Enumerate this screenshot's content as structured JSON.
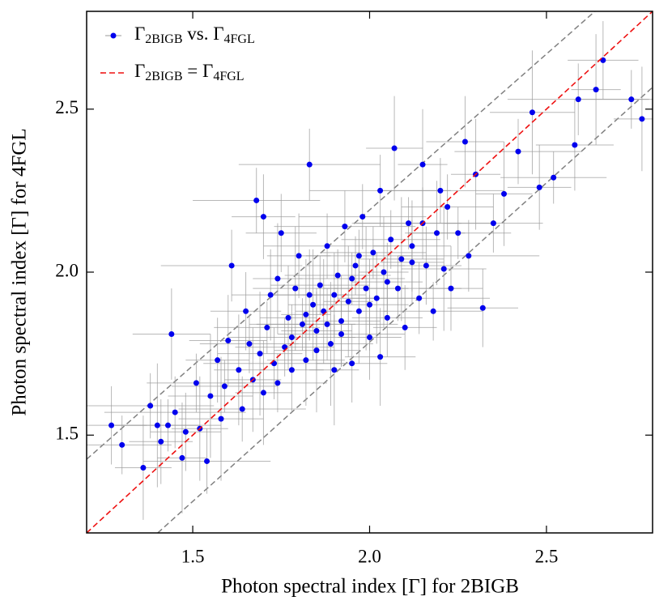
{
  "chart_data": {
    "type": "scatter",
    "xlabel": "Photon spectral index [Γ] for 2BIGB",
    "ylabel": "Photon spectral index [Γ] for 4FGL",
    "xlim": [
      1.2,
      2.8
    ],
    "ylim": [
      1.2,
      2.8
    ],
    "xticks": [
      1.5,
      {
        "value": 2,
        "label": "2.0"
      },
      2.5
    ],
    "yticks": [
      1.5,
      {
        "value": 2,
        "label": "2.0"
      },
      2.5
    ],
    "legend": "upper left",
    "series": [
      {
        "name": "Γ2BIGB vs. Γ4FGL",
        "color": "#0000ee",
        "error_color": "#9a9a9a",
        "x": [
          1.27,
          1.3,
          1.36,
          1.38,
          1.4,
          1.41,
          1.43,
          1.44,
          1.45,
          1.47,
          1.48,
          1.51,
          1.52,
          1.54,
          1.55,
          1.57,
          1.59,
          1.6,
          1.61,
          1.63,
          1.65,
          1.66,
          1.67,
          1.68,
          1.69,
          1.7,
          1.71,
          1.72,
          1.73,
          1.74,
          1.75,
          1.76,
          1.77,
          1.78,
          1.79,
          1.8,
          1.81,
          1.82,
          1.83,
          1.84,
          1.85,
          1.86,
          1.87,
          1.88,
          1.89,
          1.9,
          1.91,
          1.92,
          1.93,
          1.94,
          1.95,
          1.96,
          1.97,
          1.98,
          1.99,
          2.0,
          2.01,
          2.02,
          2.03,
          2.04,
          2.05,
          2.06,
          2.07,
          2.08,
          2.09,
          2.1,
          2.11,
          2.12,
          2.14,
          2.15,
          2.16,
          2.18,
          2.19,
          2.2,
          2.21,
          2.23,
          2.25,
          2.27,
          2.28,
          2.3,
          2.32,
          2.35,
          2.38,
          2.42,
          2.46,
          2.48,
          2.52,
          2.58,
          2.59,
          2.64,
          2.66,
          2.74,
          2.77,
          1.92,
          1.85,
          1.78,
          1.95,
          2.0,
          1.88,
          1.82,
          2.05,
          1.74,
          1.7,
          1.64,
          1.58,
          2.12,
          1.97,
          1.83,
          2.15,
          1.9,
          2.22,
          2.03
        ],
        "y": [
          1.53,
          1.47,
          1.4,
          1.59,
          1.53,
          1.48,
          1.53,
          1.81,
          1.57,
          1.43,
          1.51,
          1.66,
          1.52,
          1.42,
          1.62,
          1.73,
          1.65,
          1.79,
          2.02,
          1.7,
          1.88,
          1.78,
          1.67,
          2.22,
          1.75,
          2.17,
          1.83,
          1.93,
          1.72,
          1.98,
          2.12,
          1.77,
          1.86,
          1.8,
          1.95,
          2.05,
          1.84,
          1.73,
          2.33,
          1.9,
          1.82,
          1.96,
          1.88,
          2.08,
          1.78,
          1.93,
          1.99,
          1.85,
          2.14,
          1.91,
          1.72,
          2.02,
          1.88,
          2.17,
          1.95,
          1.8,
          2.06,
          1.92,
          2.25,
          2.0,
          1.86,
          2.1,
          2.38,
          1.95,
          2.04,
          1.83,
          2.15,
          2.08,
          1.92,
          2.33,
          2.02,
          1.88,
          2.12,
          2.25,
          2.01,
          1.95,
          2.12,
          2.4,
          2.05,
          2.3,
          1.89,
          2.15,
          2.24,
          2.37,
          2.49,
          2.26,
          2.29,
          2.39,
          2.53,
          2.56,
          2.65,
          2.53,
          2.47,
          1.81,
          1.76,
          1.7,
          1.98,
          1.9,
          1.84,
          1.87,
          1.97,
          1.66,
          1.63,
          1.58,
          1.55,
          2.03,
          2.05,
          1.93,
          2.15,
          1.7,
          2.2,
          1.74
        ],
        "xerr": [
          0.1,
          0.14,
          0.08,
          0.18,
          0.12,
          0.09,
          0.15,
          0.11,
          0.2,
          0.07,
          0.1,
          0.14,
          0.08,
          0.18,
          0.12,
          0.09,
          0.15,
          0.11,
          0.2,
          0.07,
          0.1,
          0.14,
          0.08,
          0.18,
          0.12,
          0.09,
          0.15,
          0.11,
          0.2,
          0.07,
          0.1,
          0.14,
          0.08,
          0.18,
          0.12,
          0.09,
          0.15,
          0.11,
          0.2,
          0.07,
          0.1,
          0.14,
          0.08,
          0.18,
          0.12,
          0.09,
          0.15,
          0.11,
          0.2,
          0.07,
          0.1,
          0.14,
          0.08,
          0.18,
          0.12,
          0.09,
          0.15,
          0.11,
          0.2,
          0.07,
          0.1,
          0.14,
          0.08,
          0.18,
          0.12,
          0.09,
          0.15,
          0.11,
          0.2,
          0.07,
          0.1,
          0.14,
          0.08,
          0.18,
          0.12,
          0.09,
          0.15,
          0.11,
          0.2,
          0.07,
          0.1,
          0.14,
          0.08,
          0.18,
          0.12,
          0.09,
          0.15,
          0.11,
          0.2,
          0.07,
          0.1,
          0.14,
          0.08,
          0.18,
          0.12,
          0.09,
          0.15,
          0.11,
          0.2,
          0.07,
          0.1,
          0.14,
          0.08,
          0.18,
          0.12,
          0.09,
          0.15,
          0.11,
          0.2,
          0.07,
          0.13,
          0.1
        ],
        "yerr": [
          0.12,
          0.09,
          0.16,
          0.1,
          0.19,
          0.13,
          0.08,
          0.14,
          0.11,
          0.17,
          0.12,
          0.09,
          0.16,
          0.1,
          0.19,
          0.13,
          0.08,
          0.14,
          0.11,
          0.17,
          0.12,
          0.09,
          0.16,
          0.1,
          0.19,
          0.13,
          0.08,
          0.14,
          0.11,
          0.17,
          0.12,
          0.09,
          0.16,
          0.1,
          0.19,
          0.13,
          0.08,
          0.14,
          0.11,
          0.17,
          0.12,
          0.09,
          0.16,
          0.1,
          0.19,
          0.13,
          0.08,
          0.14,
          0.11,
          0.17,
          0.12,
          0.09,
          0.16,
          0.1,
          0.19,
          0.13,
          0.08,
          0.14,
          0.11,
          0.17,
          0.12,
          0.09,
          0.16,
          0.1,
          0.19,
          0.13,
          0.08,
          0.14,
          0.11,
          0.17,
          0.12,
          0.09,
          0.16,
          0.1,
          0.19,
          0.13,
          0.08,
          0.14,
          0.11,
          0.17,
          0.12,
          0.09,
          0.16,
          0.1,
          0.19,
          0.13,
          0.08,
          0.14,
          0.11,
          0.17,
          0.12,
          0.09,
          0.16,
          0.1,
          0.19,
          0.13,
          0.08,
          0.14,
          0.11,
          0.17,
          0.12,
          0.09,
          0.16,
          0.1,
          0.19,
          0.13,
          0.08,
          0.14,
          0.11,
          0.17,
          0.1,
          0.15
        ]
      },
      {
        "name": "Γ2BIGB = Γ4FGL",
        "type": "line",
        "style": "dashed",
        "color": "#ee1111",
        "x": [
          1.2,
          2.8
        ],
        "y": [
          1.2,
          2.8
        ]
      }
    ],
    "reference_lines": [
      {
        "style": "dashed",
        "color": "#808080",
        "x": [
          1.2,
          2.637
        ],
        "y": [
          1.426,
          2.8
        ]
      },
      {
        "style": "dashed",
        "color": "#808080",
        "x": [
          1.401,
          2.8
        ],
        "y": [
          1.2,
          2.567
        ]
      }
    ]
  }
}
